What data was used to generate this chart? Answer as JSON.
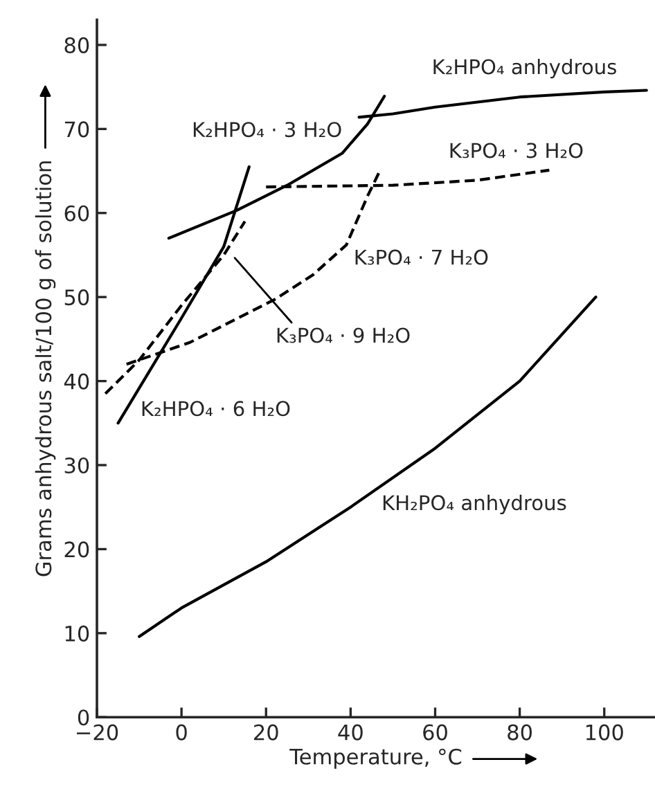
{
  "chart_data": {
    "type": "line",
    "xlabel": "Temperature, °C",
    "ylabel": "Grams anhydrous salt/100 g of solution",
    "xlim": [
      -20,
      112
    ],
    "ylim": [
      0,
      83
    ],
    "xticks": [
      -20,
      0,
      20,
      40,
      60,
      80,
      100
    ],
    "yticks": [
      0,
      10,
      20,
      30,
      40,
      50,
      60,
      70,
      80
    ],
    "grid": false,
    "legend": false,
    "series": [
      {
        "name": "K₂HPO₄ anhydrous",
        "color": "#000000",
        "line_style": "solid",
        "x": [
          42,
          50,
          60,
          80,
          100,
          110
        ],
        "values": [
          71.4,
          71.8,
          72.6,
          73.8,
          74.4,
          74.6
        ]
      },
      {
        "name": "K₂HPO₄ · 3 H₂O",
        "color": "#000000",
        "line_style": "solid",
        "x": [
          -3,
          13,
          25,
          38,
          44,
          48
        ],
        "values": [
          57,
          60.3,
          63.3,
          67.1,
          70.6,
          73.9
        ]
      },
      {
        "name": "K₃PO₄ · 3 H₂O",
        "color": "#000000",
        "line_style": "dashed",
        "x": [
          20,
          50,
          70,
          87
        ],
        "values": [
          63.1,
          63.3,
          63.9,
          65.1
        ]
      },
      {
        "name": "K₃PO₄ · 7 H₂O",
        "color": "#000000",
        "line_style": "dashed",
        "x": [
          -13,
          2,
          22,
          31,
          39,
          44,
          47
        ],
        "values": [
          42,
          44.6,
          49.7,
          52.6,
          56.2,
          62,
          65.1
        ]
      },
      {
        "name": "K₂HPO₄ · 6 H₂O",
        "color": "#000000",
        "line_style": "solid",
        "x": [
          -15,
          0,
          10,
          16
        ],
        "values": [
          35,
          47.5,
          56,
          65.5
        ]
      },
      {
        "name": "KH₂PO₄ anhydrous",
        "color": "#000000",
        "line_style": "solid",
        "x": [
          -10,
          0,
          20,
          40,
          60,
          80,
          98
        ],
        "values": [
          9.6,
          13,
          18.5,
          25,
          32,
          40,
          50
        ]
      },
      {
        "color": "#000000",
        "line_style": "dashed",
        "x": [
          -18,
          -10,
          0,
          10,
          15
        ],
        "values": [
          38.5,
          42.5,
          49,
          55,
          59
        ]
      }
    ],
    "annotations": [
      {
        "text": "K₃PO₄ · 9 H₂O",
        "x": 12,
        "y": 55
      }
    ]
  }
}
